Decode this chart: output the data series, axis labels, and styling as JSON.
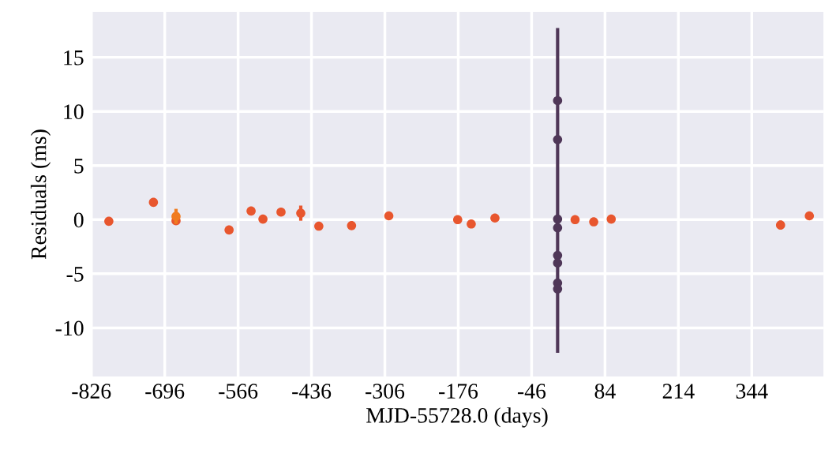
{
  "chart_data": {
    "type": "scatter",
    "xlabel": "MJD-55728.0 (days)",
    "ylabel": "Residuals (ms)",
    "xlim": [
      -827,
      471
    ],
    "ylim": [
      -14.5,
      19.2
    ],
    "xticks": [
      -826,
      -696,
      -566,
      -436,
      -306,
      -176,
      -46,
      84,
      214,
      344
    ],
    "yticks": [
      -10,
      -5,
      0,
      5,
      10,
      15
    ],
    "grid": true,
    "marker": "circle",
    "series": [
      {
        "color": "#e8562e",
        "x": [
          -795,
          -716,
          -676,
          -582,
          -543,
          -522,
          -490,
          -455,
          -423,
          -365,
          -299,
          -177,
          -153,
          -111,
          31,
          64,
          95,
          395,
          446
        ],
        "values": [
          -0.15,
          1.6,
          -0.1,
          -0.95,
          0.8,
          0.05,
          0.7,
          0.6,
          -0.6,
          -0.55,
          0.35,
          0,
          -0.4,
          0.15,
          0,
          -0.2,
          0.05,
          -0.5,
          0.35
        ],
        "errors": [
          null,
          0.3,
          null,
          null,
          null,
          null,
          null,
          0.7,
          null,
          null,
          null,
          null,
          null,
          null,
          null,
          null,
          null,
          0.4,
          null
        ]
      },
      {
        "color": "#f07b1f",
        "x": [
          -676
        ],
        "values": [
          0.3
        ],
        "errors": [
          0.7
        ]
      },
      {
        "color": "#4f3758",
        "x": [
          0,
          0,
          0,
          0,
          0,
          0,
          0,
          0
        ],
        "values": [
          11.0,
          7.4,
          0.05,
          -0.75,
          -3.3,
          -4.0,
          -5.85,
          -6.4
        ],
        "errors": [
          null,
          null,
          [
            -12.3,
            17.7
          ],
          null,
          null,
          null,
          null,
          null
        ]
      }
    ]
  }
}
